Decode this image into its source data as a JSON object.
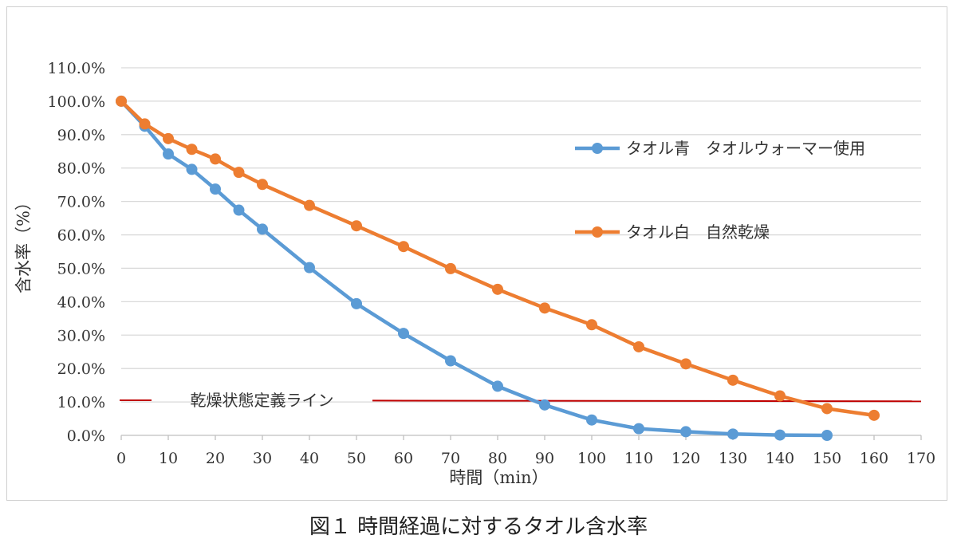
{
  "caption": "図１ 時間経過に対するタオル含水率",
  "chart_data": {
    "type": "line",
    "title": "",
    "xlabel": "時間（min）",
    "ylabel": "含水率（%）",
    "xlim": [
      0,
      170
    ],
    "ylim": [
      0,
      110
    ],
    "x_ticks": [
      0,
      10,
      20,
      30,
      40,
      50,
      60,
      70,
      80,
      90,
      100,
      110,
      120,
      130,
      140,
      150,
      160,
      170
    ],
    "y_ticks": [
      0,
      10,
      20,
      30,
      40,
      50,
      60,
      70,
      80,
      90,
      100,
      110
    ],
    "y_tick_labels": [
      "0.0%",
      "10.0%",
      "20.0%",
      "30.0%",
      "40.0%",
      "50.0%",
      "60.0%",
      "70.0%",
      "80.0%",
      "90.0%",
      "100.0%",
      "110.0%"
    ],
    "grid": true,
    "legend_position": "right",
    "series": [
      {
        "name": "タオル青　タオルウォーマー使用",
        "color": "#5b9bd5",
        "x": [
          0,
          5,
          10,
          15,
          20,
          25,
          30,
          40,
          50,
          60,
          70,
          80,
          90,
          100,
          110,
          120,
          130,
          140,
          150
        ],
        "y": [
          100,
          92.5,
          84.2,
          79.6,
          73.7,
          67.4,
          61.7,
          50.2,
          39.4,
          30.5,
          22.3,
          14.7,
          9.1,
          4.6,
          2.0,
          1.1,
          0.4,
          0.1,
          0.0
        ]
      },
      {
        "name": "タオル白　自然乾燥",
        "color": "#ed7d31",
        "x": [
          0,
          5,
          10,
          15,
          20,
          25,
          30,
          40,
          50,
          60,
          70,
          80,
          90,
          100,
          110,
          120,
          130,
          140,
          150,
          160
        ],
        "y": [
          100,
          93.2,
          88.8,
          85.6,
          82.7,
          78.7,
          75.1,
          68.8,
          62.7,
          56.5,
          49.9,
          43.7,
          38.1,
          33.1,
          26.5,
          21.4,
          16.5,
          11.8,
          8.0,
          6.0
        ]
      }
    ],
    "reference_line": {
      "label": "乾燥状態定義ライン",
      "color": "#c00000",
      "y_start": 10.5,
      "y_end": 10.2
    }
  }
}
